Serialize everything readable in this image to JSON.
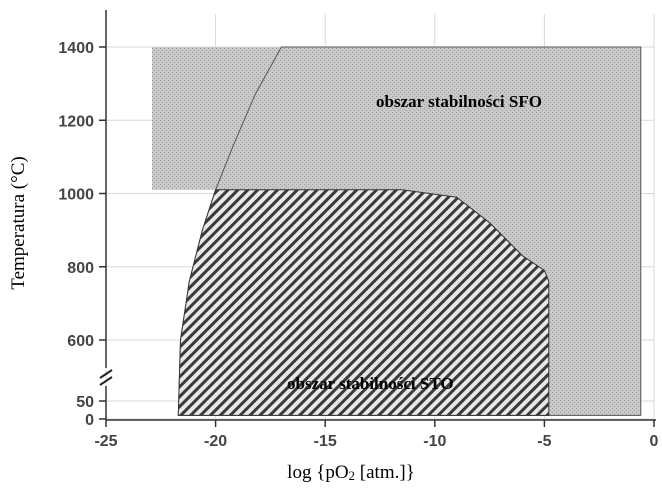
{
  "chart_data": {
    "type": "area",
    "xlabel_prefix": "log {pO",
    "xlabel_sub": "2",
    "xlabel_suffix": " [atm.]}",
    "ylabel": "Temperatura (°C)",
    "xlim": [
      -25,
      0
    ],
    "x_ticks": [
      -25,
      -20,
      -15,
      -10,
      -5,
      0
    ],
    "y_ticks_upper": [
      600,
      800,
      1000,
      1200,
      1400
    ],
    "y_ticks_lower": [
      0,
      50
    ],
    "y_axis_break": true,
    "grid": true,
    "regions": [
      {
        "label": "obszar stabilności SFO",
        "style": "gray-stipple",
        "boundary": [
          {
            "x": -21.7,
            "y": 10
          },
          {
            "x": -21.6,
            "y": 600
          },
          {
            "x": -21.2,
            "y": 760
          },
          {
            "x": -20.6,
            "y": 900
          },
          {
            "x": -20.0,
            "y": 1010
          },
          {
            "x": -19.2,
            "y": 1130
          },
          {
            "x": -18.2,
            "y": 1270
          },
          {
            "x": -17.0,
            "y": 1400
          },
          {
            "x": -0.6,
            "y": 1400
          },
          {
            "x": -0.6,
            "y": 10
          }
        ],
        "extra_block": [
          {
            "x": -22.9,
            "y": 1010
          },
          {
            "x": -22.9,
            "y": 1400
          },
          {
            "x": -17.0,
            "y": 1400
          },
          {
            "x": -18.6,
            "y": 1200
          },
          {
            "x": -19.9,
            "y": 1010
          }
        ]
      },
      {
        "label": "obszar stabilności STO",
        "style": "diagonal-hatch",
        "boundary": [
          {
            "x": -21.7,
            "y": 10
          },
          {
            "x": -21.6,
            "y": 600
          },
          {
            "x": -21.2,
            "y": 760
          },
          {
            "x": -20.6,
            "y": 900
          },
          {
            "x": -20.0,
            "y": 1010
          },
          {
            "x": -11.5,
            "y": 1010
          },
          {
            "x": -9.0,
            "y": 990
          },
          {
            "x": -7.5,
            "y": 920
          },
          {
            "x": -6.0,
            "y": 830
          },
          {
            "x": -5.0,
            "y": 790
          },
          {
            "x": -4.8,
            "y": 760
          },
          {
            "x": -4.8,
            "y": 10
          }
        ]
      }
    ]
  }
}
